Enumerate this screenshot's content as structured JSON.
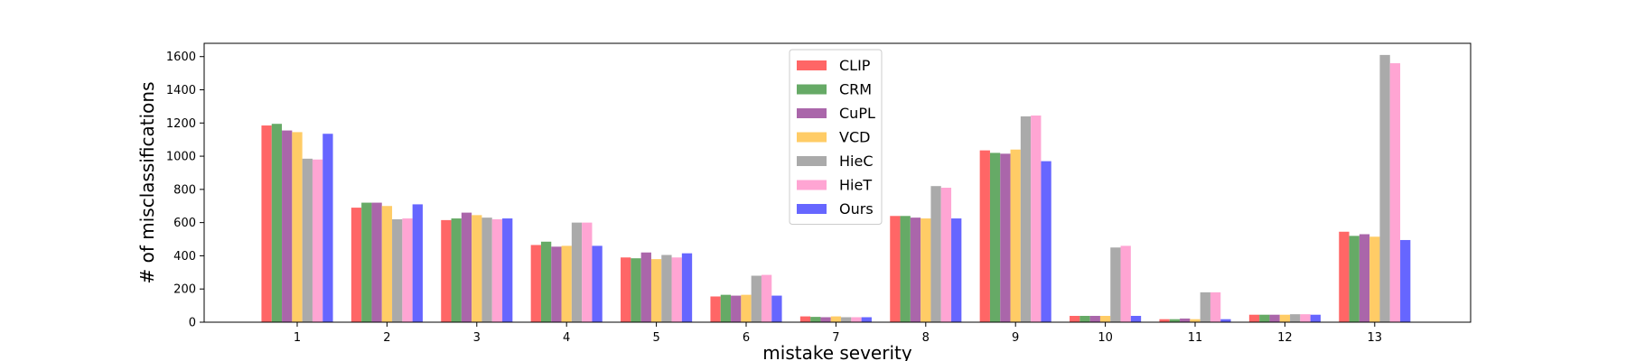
{
  "chart_data": {
    "type": "bar",
    "title": "",
    "xlabel": "mistake severity",
    "ylabel": "# of misclassifications",
    "categories": [
      "1",
      "2",
      "3",
      "4",
      "5",
      "6",
      "7",
      "8",
      "9",
      "10",
      "11",
      "12",
      "13"
    ],
    "ylim": [
      0,
      1680
    ],
    "yticks": [
      0,
      200,
      400,
      600,
      800,
      1000,
      1200,
      1400,
      1600
    ],
    "grid": false,
    "legend_position": "top-center",
    "series": [
      {
        "name": "CLIP",
        "color": "#ff6666",
        "values": [
          1185,
          690,
          615,
          465,
          390,
          155,
          35,
          640,
          1035,
          38,
          18,
          45,
          545
        ]
      },
      {
        "name": "CRM",
        "color": "#66aa66",
        "values": [
          1195,
          720,
          625,
          485,
          385,
          165,
          32,
          640,
          1020,
          38,
          18,
          45,
          520
        ]
      },
      {
        "name": "CuPL",
        "color": "#aa66aa",
        "values": [
          1155,
          720,
          660,
          455,
          420,
          160,
          30,
          630,
          1015,
          38,
          22,
          45,
          530
        ]
      },
      {
        "name": "VCD",
        "color": "#ffcc66",
        "values": [
          1145,
          700,
          645,
          460,
          380,
          165,
          35,
          625,
          1040,
          38,
          18,
          45,
          515
        ]
      },
      {
        "name": "HieC",
        "color": "#aaaaaa",
        "values": [
          985,
          620,
          630,
          600,
          405,
          280,
          30,
          820,
          1240,
          450,
          180,
          48,
          1610
        ]
      },
      {
        "name": "HieT",
        "color": "#ffa5d3",
        "values": [
          980,
          625,
          620,
          600,
          390,
          285,
          30,
          810,
          1245,
          460,
          180,
          48,
          1560
        ]
      },
      {
        "name": "Ours",
        "color": "#6666ff",
        "values": [
          1135,
          710,
          625,
          460,
          415,
          160,
          30,
          625,
          970,
          38,
          18,
          45,
          495
        ]
      }
    ]
  }
}
